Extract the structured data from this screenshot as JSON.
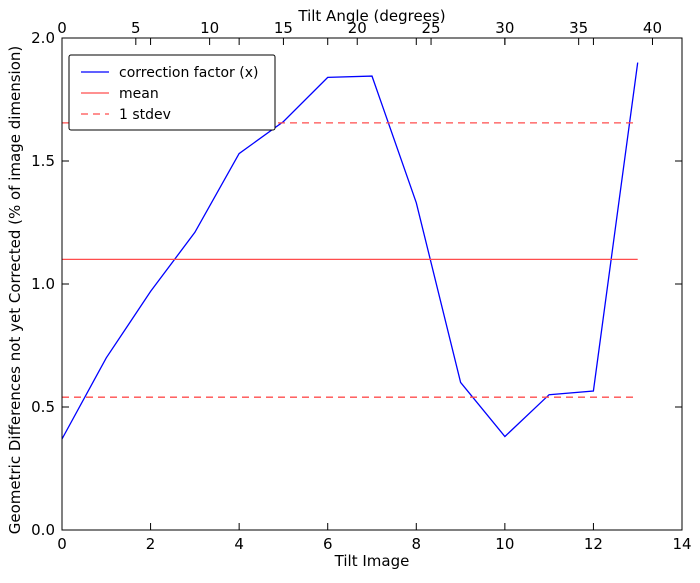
{
  "chart_data": {
    "type": "line",
    "xlabel": "Tilt Image",
    "ylabel": "Geometric Differences not yet Corrected (% of image dimension)",
    "top_xlabel": "Tilt Angle (degrees)",
    "xlim": [
      0,
      14
    ],
    "ylim": [
      0.0,
      2.0
    ],
    "top_xlim": [
      0,
      42
    ],
    "x_ticks": [
      "0",
      "2",
      "4",
      "6",
      "8",
      "10",
      "12",
      "14"
    ],
    "x_tick_values": [
      0,
      2,
      4,
      6,
      8,
      10,
      12,
      14
    ],
    "y_ticks": [
      "0.0",
      "0.5",
      "1.0",
      "1.5",
      "2.0"
    ],
    "y_tick_values": [
      0.0,
      0.5,
      1.0,
      1.5,
      2.0
    ],
    "top_ticks": [
      "0",
      "5",
      "10",
      "15",
      "20",
      "25",
      "30",
      "35",
      "40"
    ],
    "top_tick_values": [
      0,
      5,
      10,
      15,
      20,
      25,
      30,
      35,
      40
    ],
    "grid": false,
    "legend_position": "top-left",
    "series": [
      {
        "name": "correction factor (x)",
        "color": "#0000ff",
        "style": "solid",
        "x": [
          0,
          1,
          2,
          3,
          4,
          5,
          6,
          7,
          8,
          9,
          10,
          11,
          12,
          13
        ],
        "y": [
          0.37,
          0.7,
          0.97,
          1.21,
          1.53,
          1.66,
          1.84,
          1.845,
          1.33,
          0.6,
          0.38,
          0.55,
          0.565,
          1.9
        ]
      },
      {
        "name": "mean",
        "color": "#ff4d4d",
        "style": "solid",
        "x": [
          0,
          13
        ],
        "y": [
          1.1,
          1.1
        ]
      },
      {
        "name": "1 stdev",
        "color": "#ff4d4d",
        "style": "dashed",
        "x": [
          0,
          13
        ],
        "y": [
          1.655,
          1.655
        ]
      },
      {
        "name": "",
        "color": "#ff4d4d",
        "style": "dashed",
        "x": [
          0,
          13
        ],
        "y": [
          0.54,
          0.54
        ]
      }
    ]
  }
}
